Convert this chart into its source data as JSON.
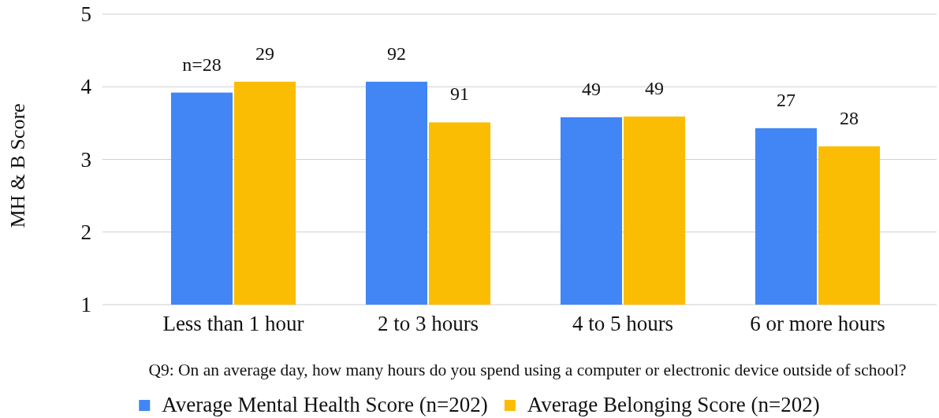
{
  "chart_data": {
    "type": "bar",
    "xlabel": "Q9: On an average day, how many hours do you spend using a computer or electronic device outside of school?",
    "ylabel": "MH & B Score",
    "categories": [
      "Less than 1 hour",
      "2 to 3 hours",
      "4 to 5 hours",
      "6 or more hours"
    ],
    "series": [
      {
        "name": "Average Mental Health Score (n=202)",
        "color": "#4285f4",
        "values": [
          3.92,
          4.07,
          3.58,
          3.43
        ]
      },
      {
        "name": "Average Belonging Score (n=202)",
        "color": "#fbbc04",
        "values": [
          4.07,
          3.51,
          3.59,
          3.18
        ]
      }
    ],
    "annotations": [
      {
        "text": "n=28",
        "x": "Less than 1 hour",
        "y": 3.92
      },
      {
        "text": "92",
        "x": "2 to 3 hours",
        "y": 4.07
      },
      {
        "text": "49",
        "x": "4 to 5 hours",
        "y": 3.58
      },
      {
        "text": "27",
        "x": "6 or more hours",
        "y": 3.43
      },
      {
        "text": "29",
        "x": "Less than 1 hour",
        "y": 4.07
      },
      {
        "text": "91",
        "x": "2 to 3 hours",
        "y": 3.51
      },
      {
        "text": "49",
        "x": "4 to 5 hours",
        "y": 3.59
      },
      {
        "text": "28",
        "x": "6 or more hours",
        "y": 3.18
      }
    ],
    "ylim": [
      1,
      5
    ],
    "yticks": [
      1,
      2,
      3,
      4,
      5
    ],
    "grid": "y",
    "legend": "bottom"
  }
}
